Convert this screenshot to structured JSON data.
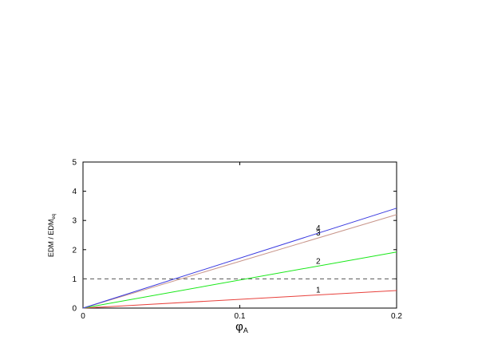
{
  "chart_data": {
    "type": "line",
    "xlabel": "φA",
    "xlabel_base": "φ",
    "xlabel_sub": "A",
    "ylabel": "EDM / EDMeq",
    "ylabel_base": "EDM / EDM",
    "ylabel_sub": "eq",
    "xlim": [
      0,
      0.2
    ],
    "ylim": [
      0,
      5
    ],
    "x_ticks": [
      0,
      0.1,
      0.2
    ],
    "x_tick_labels": [
      "0",
      "0.1",
      "0.2"
    ],
    "y_ticks": [
      0,
      1,
      2,
      3,
      4,
      5
    ],
    "y_tick_labels": [
      "0",
      "1",
      "2",
      "3",
      "4",
      "5"
    ],
    "grid": false,
    "legend": "none",
    "series": [
      {
        "name": "1",
        "color": "#e8413c",
        "x": [
          0,
          0.2
        ],
        "y": [
          0,
          0.6
        ],
        "label_at": [
          0.15,
          0.45
        ]
      },
      {
        "name": "2",
        "color": "#18e818",
        "x": [
          0,
          0.2
        ],
        "y": [
          0,
          1.92
        ],
        "label_at": [
          0.15,
          1.44
        ]
      },
      {
        "name": "3",
        "color": "#c8958a",
        "x": [
          0,
          0.2
        ],
        "y": [
          0,
          3.2
        ],
        "label_at": [
          0.15,
          2.4
        ]
      },
      {
        "name": "4",
        "color": "#3a3ae0",
        "x": [
          0,
          0.2
        ],
        "y": [
          0,
          3.42
        ],
        "label_at": [
          0.15,
          2.57
        ]
      }
    ],
    "reference_lines": [
      {
        "axis": "y",
        "value": 1,
        "style": "dashed",
        "color": "#555555"
      }
    ]
  }
}
